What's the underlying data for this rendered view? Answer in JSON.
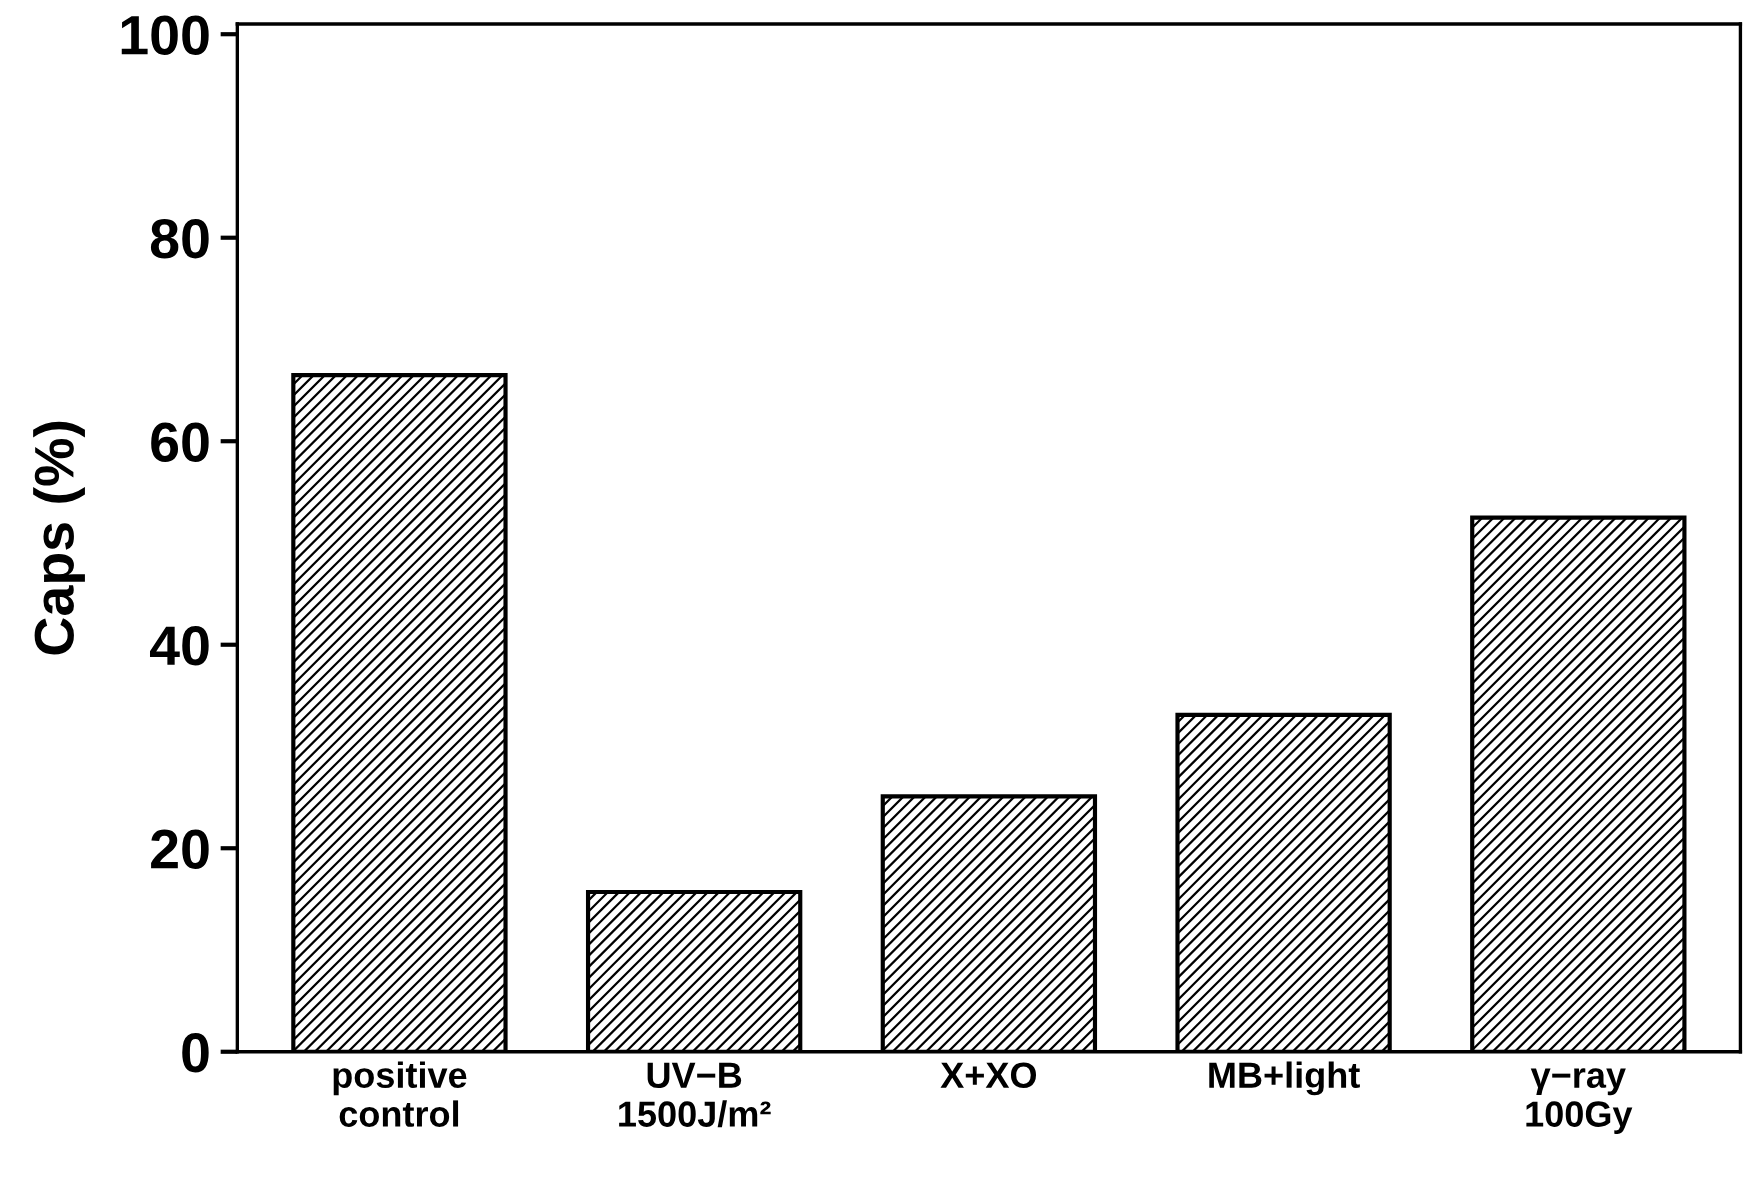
{
  "chart_data": {
    "type": "bar",
    "ylabel": "Caps (%)",
    "categories": [
      "positive\ncontrol",
      "UV−B\n1500J/m²",
      "X+XO",
      "MB+light",
      "γ−ray\n100Gy"
    ],
    "values": [
      66.5,
      15.7,
      25.1,
      33.1,
      52.5
    ],
    "color": "#000000",
    "ylim": [
      0,
      101
    ],
    "yticks": [
      0,
      20,
      40,
      60,
      80,
      100
    ],
    "grid": false,
    "legend": false
  }
}
